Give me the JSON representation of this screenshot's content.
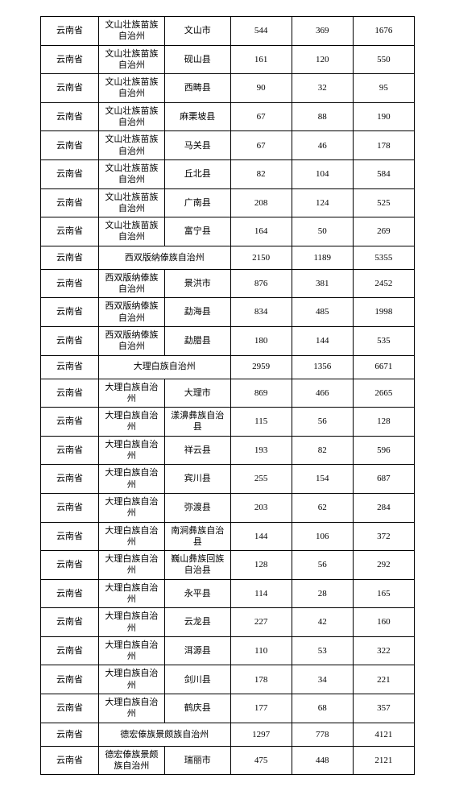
{
  "rows": [
    {
      "type": "r",
      "c0": "云南省",
      "c1": "文山壮族苗族自治州",
      "c2": "文山市",
      "c3": "544",
      "c4": "369",
      "c5": "1676"
    },
    {
      "type": "r",
      "c0": "云南省",
      "c1": "文山壮族苗族自治州",
      "c2": "砚山县",
      "c3": "161",
      "c4": "120",
      "c5": "550"
    },
    {
      "type": "r",
      "c0": "云南省",
      "c1": "文山壮族苗族自治州",
      "c2": "西畴县",
      "c3": "90",
      "c4": "32",
      "c5": "95"
    },
    {
      "type": "r",
      "c0": "云南省",
      "c1": "文山壮族苗族自治州",
      "c2": "麻栗坡县",
      "c3": "67",
      "c4": "88",
      "c5": "190"
    },
    {
      "type": "r",
      "c0": "云南省",
      "c1": "文山壮族苗族自治州",
      "c2": "马关县",
      "c3": "67",
      "c4": "46",
      "c5": "178"
    },
    {
      "type": "r",
      "c0": "云南省",
      "c1": "文山壮族苗族自治州",
      "c2": "丘北县",
      "c3": "82",
      "c4": "104",
      "c5": "584"
    },
    {
      "type": "r",
      "c0": "云南省",
      "c1": "文山壮族苗族自治州",
      "c2": "广南县",
      "c3": "208",
      "c4": "124",
      "c5": "525"
    },
    {
      "type": "r",
      "c0": "云南省",
      "c1": "文山壮族苗族自治州",
      "c2": "富宁县",
      "c3": "164",
      "c4": "50",
      "c5": "269"
    },
    {
      "type": "m",
      "c0": "云南省",
      "m": "西双版纳傣族自治州",
      "c3": "2150",
      "c4": "1189",
      "c5": "5355"
    },
    {
      "type": "r",
      "c0": "云南省",
      "c1": "西双版纳傣族自治州",
      "c2": "景洪市",
      "c3": "876",
      "c4": "381",
      "c5": "2452"
    },
    {
      "type": "r",
      "c0": "云南省",
      "c1": "西双版纳傣族自治州",
      "c2": "勐海县",
      "c3": "834",
      "c4": "485",
      "c5": "1998"
    },
    {
      "type": "r",
      "c0": "云南省",
      "c1": "西双版纳傣族自治州",
      "c2": "勐腊县",
      "c3": "180",
      "c4": "144",
      "c5": "535"
    },
    {
      "type": "m",
      "c0": "云南省",
      "m": "大理白族自治州",
      "c3": "2959",
      "c4": "1356",
      "c5": "6671"
    },
    {
      "type": "r",
      "c0": "云南省",
      "c1": "大理白族自治州",
      "c2": "大理市",
      "c3": "869",
      "c4": "466",
      "c5": "2665"
    },
    {
      "type": "r",
      "c0": "云南省",
      "c1": "大理白族自治州",
      "c2": "漾濞彝族自治县",
      "c3": "115",
      "c4": "56",
      "c5": "128"
    },
    {
      "type": "r",
      "c0": "云南省",
      "c1": "大理白族自治州",
      "c2": "祥云县",
      "c3": "193",
      "c4": "82",
      "c5": "596"
    },
    {
      "type": "r",
      "c0": "云南省",
      "c1": "大理白族自治州",
      "c2": "宾川县",
      "c3": "255",
      "c4": "154",
      "c5": "687"
    },
    {
      "type": "r",
      "c0": "云南省",
      "c1": "大理白族自治州",
      "c2": "弥渡县",
      "c3": "203",
      "c4": "62",
      "c5": "284"
    },
    {
      "type": "r",
      "c0": "云南省",
      "c1": "大理白族自治州",
      "c2": "南涧彝族自治县",
      "c3": "144",
      "c4": "106",
      "c5": "372"
    },
    {
      "type": "r",
      "c0": "云南省",
      "c1": "大理白族自治州",
      "c2": "巍山彝族回族自治县",
      "c3": "128",
      "c4": "56",
      "c5": "292"
    },
    {
      "type": "r",
      "c0": "云南省",
      "c1": "大理白族自治州",
      "c2": "永平县",
      "c3": "114",
      "c4": "28",
      "c5": "165"
    },
    {
      "type": "r",
      "c0": "云南省",
      "c1": "大理白族自治州",
      "c2": "云龙县",
      "c3": "227",
      "c4": "42",
      "c5": "160"
    },
    {
      "type": "r",
      "c0": "云南省",
      "c1": "大理白族自治州",
      "c2": "洱源县",
      "c3": "110",
      "c4": "53",
      "c5": "322"
    },
    {
      "type": "r",
      "c0": "云南省",
      "c1": "大理白族自治州",
      "c2": "剑川县",
      "c3": "178",
      "c4": "34",
      "c5": "221"
    },
    {
      "type": "r",
      "c0": "云南省",
      "c1": "大理白族自治州",
      "c2": "鹤庆县",
      "c3": "177",
      "c4": "68",
      "c5": "357"
    },
    {
      "type": "m",
      "c0": "云南省",
      "m": "德宏傣族景颇族自治州",
      "c3": "1297",
      "c4": "778",
      "c5": "4121"
    },
    {
      "type": "r",
      "c0": "云南省",
      "c1": "德宏傣族景颇族自治州",
      "c2": "瑞丽市",
      "c3": "475",
      "c4": "448",
      "c5": "2121"
    }
  ]
}
